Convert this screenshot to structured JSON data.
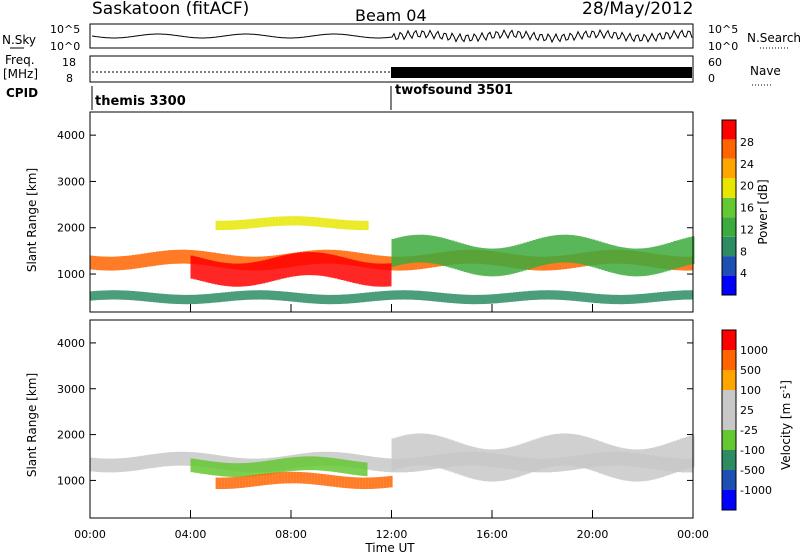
{
  "header": {
    "station": "Saskatoon (fitACF)",
    "beam": "Beam 04",
    "date": "28/May/2012"
  },
  "panels": {
    "nsky_label": "N.Sky",
    "nsearch_label": "N.Search",
    "nsky_ticks": [
      "10^5",
      "10^0"
    ],
    "nsearch_ticks": [
      "10^5",
      "10^0"
    ],
    "freq_label": "Freq.",
    "freq_unit": "[MHz]",
    "freq_ticks": [
      "18",
      "8"
    ],
    "nave_label": "Nave",
    "nave_ticks": [
      "60",
      "0"
    ],
    "cpid_label": "CPID",
    "cpid_modes": [
      {
        "name": "themis 3300",
        "start": "00:00",
        "end": "12:00"
      },
      {
        "name": "twofsound 3501",
        "start": "12:00",
        "end": "24:00"
      }
    ]
  },
  "colors": {
    "power_scale": [
      "#0000ff",
      "#1e50b4",
      "#2d8c64",
      "#3caa3c",
      "#64c832",
      "#e6e600",
      "#ffa500",
      "#ff6400",
      "#ff0000"
    ],
    "velocity_scale": [
      "#ff0000",
      "#ff6400",
      "#ffa500",
      "#c8c8c8",
      "#c8c8c8",
      "#64c832",
      "#2d8c64",
      "#1e50b4",
      "#0000ff"
    ],
    "ground_scatter": "#c8c8c8"
  },
  "chart_data": [
    {
      "type": "heatmap",
      "name": "power",
      "xlabel": "",
      "ylabel": "Slant Range [km]",
      "xlim": [
        0,
        24
      ],
      "ylim": [
        180,
        4500
      ],
      "yticks": [
        1000,
        2000,
        3000,
        4000
      ],
      "colorbar_label": "Power [dB]",
      "colorbar_ticks": [
        "28",
        "24",
        "20",
        "16",
        "12",
        "8",
        "4"
      ],
      "colorbar_range": [
        0,
        32
      ],
      "bands": [
        {
          "t": [
            0,
            24
          ],
          "r_center": 1300,
          "r_width": 300,
          "value": 26,
          "note": "main echo band"
        },
        {
          "t": [
            4,
            12
          ],
          "r_center": 1100,
          "r_width": 500,
          "value": 29
        },
        {
          "t": [
            5,
            11
          ],
          "r_center": 2100,
          "r_width": 200,
          "value": 20
        },
        {
          "t": [
            12,
            24
          ],
          "r_center": 1400,
          "r_width": 600,
          "value": 14
        },
        {
          "t": [
            0,
            24
          ],
          "r_center": 500,
          "r_width": 200,
          "value": 10
        }
      ]
    },
    {
      "type": "heatmap",
      "name": "velocity",
      "xlabel": "Time UT",
      "ylabel": "Slant Range [km]",
      "xlim": [
        0,
        24
      ],
      "ylim": [
        180,
        4500
      ],
      "yticks": [
        1000,
        2000,
        3000,
        4000
      ],
      "xticks": [
        "00:00",
        "04:00",
        "08:00",
        "12:00",
        "16:00",
        "20:00",
        "00:00"
      ],
      "colorbar_label": "Velocity [m s^-1]",
      "colorbar_ticks": [
        "1000",
        "500",
        "100",
        "25",
        "-25",
        "-100",
        "-500",
        "-1000"
      ],
      "bands": [
        {
          "t": [
            0,
            24
          ],
          "r_center": 1400,
          "r_width": 300,
          "value": 0,
          "note": "ground scatter"
        },
        {
          "t": [
            4,
            11
          ],
          "r_center": 1300,
          "r_width": 300,
          "value": 80
        },
        {
          "t": [
            5,
            12
          ],
          "r_center": 1000,
          "r_width": 250,
          "value": -200
        },
        {
          "t": [
            12,
            24
          ],
          "r_center": 1500,
          "r_width": 700,
          "value": 0
        }
      ]
    }
  ]
}
